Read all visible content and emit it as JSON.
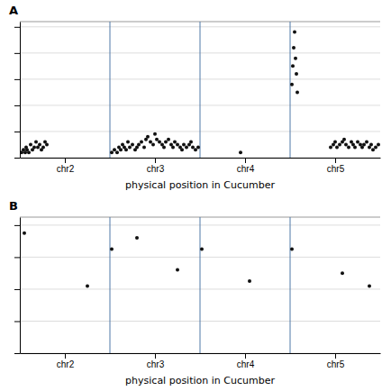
{
  "chart_data": [
    {
      "type": "scatter",
      "title": "A",
      "xlabel": "physical position in Cucumber",
      "x": [
        0.02,
        0.04,
        0.06,
        0.07,
        0.08,
        0.1,
        0.12,
        0.14,
        0.16,
        0.18,
        0.2,
        0.22,
        0.24,
        0.26,
        0.28,
        0.3,
        1.02,
        1.05,
        1.08,
        1.1,
        1.12,
        1.14,
        1.16,
        1.18,
        1.2,
        1.22,
        1.25,
        1.28,
        1.3,
        1.32,
        1.35,
        1.38,
        1.4,
        1.42,
        1.45,
        1.48,
        1.5,
        1.52,
        1.55,
        1.58,
        1.6,
        1.62,
        1.65,
        1.68,
        1.7,
        1.72,
        1.75,
        1.78,
        1.8,
        1.82,
        1.85,
        1.88,
        1.9,
        1.92,
        1.95,
        1.98,
        2.45,
        3.02,
        3.03,
        3.04,
        3.05,
        3.06,
        3.07,
        3.08,
        3.45,
        3.48,
        3.5,
        3.52,
        3.55,
        3.58,
        3.6,
        3.62,
        3.65,
        3.68,
        3.7,
        3.72,
        3.75,
        3.78,
        3.8,
        3.82,
        3.85,
        3.88,
        3.9,
        3.92,
        3.95,
        3.98
      ],
      "values": [
        0.02,
        0.03,
        0.02,
        0.04,
        0.03,
        0.02,
        0.05,
        0.03,
        0.04,
        0.06,
        0.04,
        0.05,
        0.03,
        0.04,
        0.06,
        0.05,
        0.02,
        0.03,
        0.02,
        0.04,
        0.03,
        0.05,
        0.04,
        0.03,
        0.06,
        0.04,
        0.05,
        0.03,
        0.04,
        0.05,
        0.06,
        0.04,
        0.07,
        0.08,
        0.06,
        0.05,
        0.09,
        0.07,
        0.06,
        0.05,
        0.04,
        0.06,
        0.07,
        0.05,
        0.04,
        0.06,
        0.05,
        0.04,
        0.03,
        0.05,
        0.04,
        0.05,
        0.06,
        0.04,
        0.03,
        0.04,
        0.02,
        0.28,
        0.35,
        0.42,
        0.48,
        0.38,
        0.32,
        0.25,
        0.04,
        0.05,
        0.06,
        0.04,
        0.05,
        0.06,
        0.07,
        0.05,
        0.04,
        0.06,
        0.05,
        0.04,
        0.06,
        0.05,
        0.04,
        0.05,
        0.06,
        0.04,
        0.05,
        0.03,
        0.04,
        0.05
      ],
      "color": "#111111",
      "xlim": [
        0,
        4.0
      ],
      "xticks": [
        {
          "value": 0.5,
          "label": "chr2"
        },
        {
          "value": 1.5,
          "label": "chr3"
        },
        {
          "value": 2.5,
          "label": "chr4"
        },
        {
          "value": 3.5,
          "label": "chr5"
        }
      ],
      "ylim": [
        0,
        0.52
      ],
      "yticks": [
        0.0,
        0.1,
        0.2,
        0.3,
        0.4,
        0.5
      ],
      "dividers": [
        1,
        2,
        3
      ],
      "grid": true,
      "tick_labels": "x"
    },
    {
      "type": "scatter",
      "title": "B",
      "xlabel": "physical position in Cucumber",
      "x": [
        0.05,
        0.75,
        1.02,
        1.3,
        1.75,
        2.02,
        2.55,
        3.02,
        3.58,
        3.88
      ],
      "values": [
        0.75,
        0.42,
        0.65,
        0.72,
        0.52,
        0.65,
        0.45,
        0.65,
        0.5,
        0.42
      ],
      "color": "#111111",
      "xlim": [
        0,
        4.0
      ],
      "xticks": [
        {
          "value": 0.5,
          "label": "chr2"
        },
        {
          "value": 1.5,
          "label": "chr3"
        },
        {
          "value": 2.5,
          "label": "chr4"
        },
        {
          "value": 3.5,
          "label": "chr5"
        }
      ],
      "ylim": [
        0,
        0.85
      ],
      "yticks": [
        0.0,
        0.2,
        0.4,
        0.6,
        0.8
      ],
      "dividers": [
        1,
        2,
        3
      ],
      "grid": true,
      "tick_labels": "x"
    }
  ]
}
